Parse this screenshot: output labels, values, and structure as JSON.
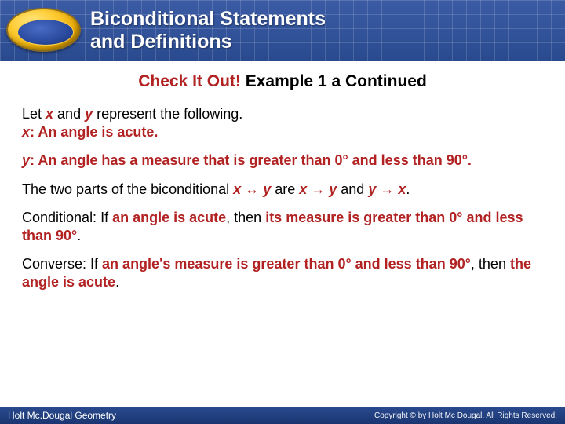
{
  "colors": {
    "header_bg_top": "#3b5ba5",
    "header_bg_bottom": "#2a4a8f",
    "accent_red": "#b22222",
    "text_black": "#000000",
    "footer_bg": "#1a3570",
    "badge_gold": "#ffcc33",
    "badge_blue": "#2a4a9f"
  },
  "header": {
    "title_line1": "Biconditional Statements",
    "title_line2": "and Definitions"
  },
  "subheader": {
    "red_text": "Check It Out!",
    "black_text": " Example 1 a Continued"
  },
  "body": {
    "p1_a": "Let ",
    "p1_x": "x",
    "p1_b": " and ",
    "p1_y": "y",
    "p1_c": " represent the following.",
    "p1_line2_label": "x",
    "p1_line2_rest": ": An angle is acute.",
    "p2_label": "y",
    "p2_rest": ": An angle has a measure that is greater than 0° and less than 90°.",
    "p3_a": "The two parts of the biconditional ",
    "p3_b": "x",
    "p3_c": " ↔ ",
    "p3_d": "y",
    "p3_e": " are ",
    "p3_f": "x",
    "p3_g": " → ",
    "p3_h": "y",
    "p3_i": " and ",
    "p3_j": "y",
    "p3_k": " → ",
    "p3_l": "x",
    "p3_m": ".",
    "p4_a": "Conditional: If ",
    "p4_b": "an angle is acute",
    "p4_c": ", then ",
    "p4_d": "its measure is greater than 0° and less than 90°",
    "p4_e": ".",
    "p5_a": "Converse: If ",
    "p5_b": "an angle's measure is greater than 0° and less than 90°",
    "p5_c": ", then ",
    "p5_d": "the angle is acute",
    "p5_e": "."
  },
  "footer": {
    "left": "Holt Mc.Dougal Geometry",
    "right": "Copyright © by Holt Mc Dougal. All Rights Reserved."
  }
}
